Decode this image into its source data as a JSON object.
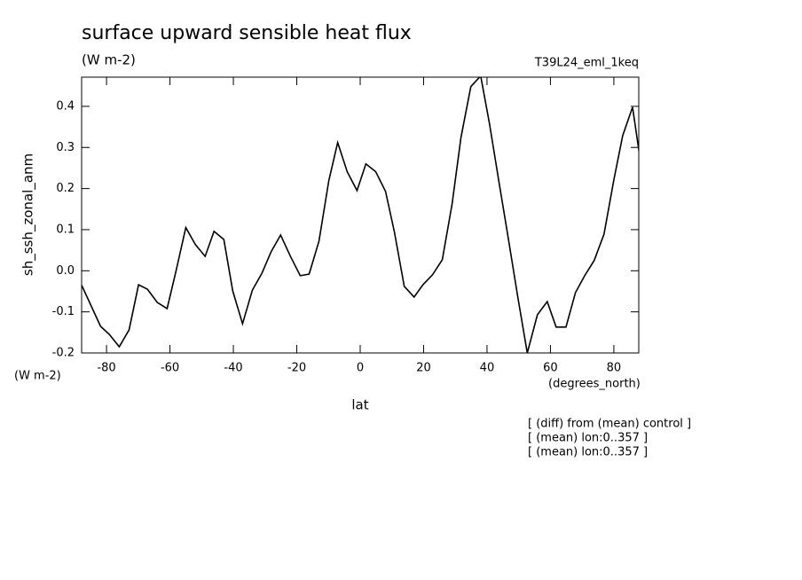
{
  "chart_data": {
    "type": "line",
    "title": "surface upward sensible heat flux",
    "subtitle": "(W m-2)",
    "experiment": "T39L24_eml_1keq",
    "y_label": "sh_ssh_zonal_anm",
    "y_unit": "(W m-2)",
    "x_unit": "(degrees_north)",
    "x_label": "lat",
    "notes": [
      "[ (diff) from (mean) control ]",
      "[ (mean) lon:0..357 ]",
      "[ (mean) lon:0..357 ]"
    ],
    "x": [
      -87.8,
      -81.9,
      -79.1,
      -76.0,
      -72.9,
      -69.9,
      -67.1,
      -64.0,
      -60.9,
      -58.1,
      -55.0,
      -52.0,
      -48.9,
      -46.1,
      -43.0,
      -40.2,
      -37.1,
      -34.0,
      -31.0,
      -28.1,
      -25.1,
      -22.0,
      -18.9,
      -16.1,
      -13.0,
      -9.9,
      -7.1,
      -4.1,
      -1.0,
      1.8,
      4.9,
      8.0,
      10.8,
      13.9,
      17.0,
      19.8,
      22.8,
      25.9,
      29.0,
      31.8,
      34.9,
      38.0,
      40.8,
      43.9,
      46.9,
      49.8,
      52.7,
      55.9,
      59.0,
      61.8,
      64.9,
      67.9,
      70.8,
      73.8,
      76.9,
      80.0,
      82.8,
      85.9,
      88.1
    ],
    "series": [
      {
        "name": "sh_ssh_zonal_anm",
        "color": "#000000",
        "values": [
          -0.036,
          -0.135,
          -0.155,
          -0.185,
          -0.144,
          -0.034,
          -0.045,
          -0.077,
          -0.092,
          -0.001,
          0.105,
          0.064,
          0.035,
          0.096,
          0.076,
          -0.049,
          -0.129,
          -0.047,
          -0.006,
          0.046,
          0.087,
          0.035,
          -0.012,
          -0.008,
          0.072,
          0.219,
          0.312,
          0.241,
          0.195,
          0.26,
          0.241,
          0.193,
          0.094,
          -0.038,
          -0.064,
          -0.034,
          -0.01,
          0.027,
          0.163,
          0.325,
          0.448,
          0.474,
          0.357,
          0.21,
          0.07,
          -0.068,
          -0.2,
          -0.107,
          -0.075,
          -0.137,
          -0.137,
          -0.053,
          -0.012,
          0.025,
          0.089,
          0.221,
          0.329,
          0.398,
          0.282
        ]
      }
    ],
    "xlim": [
      -87.86,
      87.86
    ],
    "ylim": [
      -0.2,
      0.471
    ],
    "xticks": [
      -80,
      -60,
      -40,
      -20,
      0,
      20,
      40,
      60,
      80
    ],
    "yticks": [
      -0.2,
      -0.1,
      {
        "value": 0,
        "label": "0.0"
      },
      0.1,
      0.2,
      0.3,
      0.4
    ]
  }
}
